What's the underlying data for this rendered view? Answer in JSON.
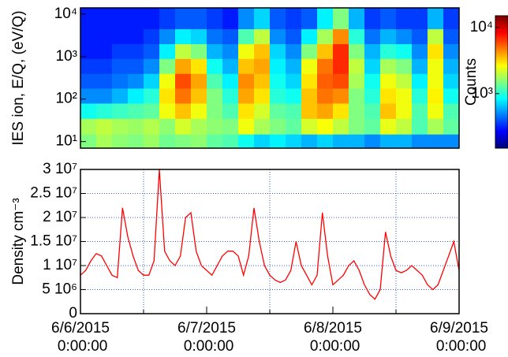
{
  "chart_data": [
    {
      "type": "heatmap",
      "y_label": "IES ion, E/Q, (eV/Q)",
      "colorbar_label": "Counts",
      "log_y": true,
      "xlim": [
        "6/6/2015 0:00:00",
        "6/9/2015 0:00:00"
      ],
      "ylim": [
        7,
        14000
      ],
      "yticks": [
        {
          "value": 10,
          "label": "10¹"
        },
        {
          "value": 100,
          "label": "10²"
        },
        {
          "value": 1000,
          "label": "10³"
        },
        {
          "value": 10000,
          "label": "10⁴"
        }
      ],
      "clim": [
        150,
        15000
      ],
      "cticks": [
        {
          "value": 1000,
          "label": "10³"
        },
        {
          "value": 10000,
          "label": "10⁴"
        }
      ],
      "colormap": "jet",
      "x_bins": [
        "6/6/2015 0:00:00",
        "6/6/2015 3:00:00",
        "6/6/2015 6:00:00",
        "6/6/2015 9:00:00",
        "6/6/2015 12:00:00",
        "6/6/2015 15:00:00",
        "6/6/2015 18:00:00",
        "6/6/2015 21:00:00",
        "6/7/2015 0:00:00",
        "6/7/2015 3:00:00",
        "6/7/2015 6:00:00",
        "6/7/2015 9:00:00",
        "6/7/2015 12:00:00",
        "6/7/2015 15:00:00",
        "6/7/2015 18:00:00",
        "6/7/2015 21:00:00",
        "6/8/2015 0:00:00",
        "6/8/2015 3:00:00",
        "6/8/2015 6:00:00",
        "6/8/2015 9:00:00",
        "6/8/2015 12:00:00",
        "6/8/2015 15:00:00",
        "6/8/2015 18:00:00",
        "6/8/2015 21:00:00",
        "6/9/2015 0:00:00"
      ],
      "y_bins": [
        7,
        15,
        35,
        80,
        180,
        400,
        900,
        2000,
        4500,
        14000
      ],
      "z": [
        [
          1500,
          1800,
          1600,
          1500,
          1700,
          1400,
          1500,
          1600,
          1300,
          1200,
          900,
          700,
          800,
          700,
          600,
          700,
          600,
          600,
          500,
          600,
          600,
          500,
          500,
          500
        ],
        [
          1800,
          2000,
          1800,
          1700,
          1900,
          1600,
          2200,
          1800,
          1600,
          1500,
          2500,
          1800,
          1500,
          1300,
          2200,
          2600,
          2000,
          1500,
          1300,
          2400,
          2000,
          1200,
          1800,
          1300
        ],
        [
          900,
          1000,
          1100,
          1200,
          1300,
          2500,
          3500,
          2500,
          1500,
          1200,
          3000,
          2200,
          1300,
          1200,
          3500,
          4000,
          3000,
          1500,
          1200,
          3500,
          2500,
          1200,
          2500,
          1200
        ],
        [
          500,
          500,
          600,
          800,
          1000,
          3000,
          5000,
          3500,
          1500,
          1000,
          4000,
          3000,
          1000,
          900,
          3500,
          5000,
          4500,
          1500,
          1000,
          3000,
          2500,
          1000,
          2800,
          900
        ],
        [
          400,
          400,
          450,
          500,
          700,
          2500,
          6000,
          4000,
          1200,
          800,
          4500,
          3500,
          900,
          700,
          3000,
          5500,
          6000,
          1800,
          900,
          2500,
          2000,
          800,
          2500,
          700
        ],
        [
          350,
          350,
          400,
          400,
          500,
          1500,
          4000,
          3000,
          900,
          600,
          3500,
          4000,
          800,
          600,
          2500,
          5000,
          7000,
          2000,
          700,
          1800,
          1500,
          600,
          2500,
          600
        ],
        [
          300,
          300,
          350,
          350,
          400,
          800,
          2000,
          1500,
          600,
          500,
          2500,
          3500,
          700,
          500,
          1500,
          3500,
          7000,
          1500,
          600,
          1000,
          900,
          500,
          3000,
          500
        ],
        [
          300,
          300,
          300,
          300,
          350,
          500,
          800,
          700,
          450,
          400,
          1200,
          2000,
          500,
          400,
          800,
          1800,
          4500,
          1000,
          450,
          600,
          500,
          400,
          2000,
          400
        ],
        [
          300,
          300,
          300,
          300,
          300,
          350,
          400,
          400,
          350,
          300,
          500,
          700,
          400,
          350,
          400,
          800,
          1500,
          600,
          350,
          400,
          350,
          350,
          600,
          350
        ]
      ]
    },
    {
      "type": "line",
      "y_label": "Density cm⁻³",
      "color": "#ff0000",
      "grid": true,
      "xlim": [
        "6/6/2015 0:00:00",
        "6/9/2015 0:00:00"
      ],
      "xticks": [
        "6/6/2015 0:00:00",
        "6/7/2015 0:00:00",
        "6/8/2015 0:00:00",
        "6/9/2015 0:00:00"
      ],
      "xminor": [
        "6/6/2015 12:00:00",
        "6/7/2015 12:00:00",
        "6/8/2015 12:00:00"
      ],
      "ylim": [
        0,
        30000000
      ],
      "yticks": [
        0,
        {
          "value": 5000000,
          "label": "5 10⁶"
        },
        {
          "value": 10000000,
          "label": "1 10⁷"
        },
        {
          "value": 15000000,
          "label": "1.5 10⁷"
        },
        {
          "value": 20000000,
          "label": "2 10⁷"
        },
        {
          "value": 25000000,
          "label": "2.5 10⁷"
        },
        {
          "value": 30000000,
          "label": "3 10⁷"
        }
      ],
      "x": [
        "6/6/2015 0:00:00",
        "6/6/2015 1:00:00",
        "6/6/2015 2:00:00",
        "6/6/2015 3:00:00",
        "6/6/2015 4:00:00",
        "6/6/2015 5:00:00",
        "6/6/2015 6:00:00",
        "6/6/2015 7:00:00",
        "6/6/2015 8:00:00",
        "6/6/2015 9:00:00",
        "6/6/2015 10:00:00",
        "6/6/2015 11:00:00",
        "6/6/2015 12:00:00",
        "6/6/2015 13:00:00",
        "6/6/2015 14:00:00",
        "6/6/2015 15:00:00",
        "6/6/2015 16:00:00",
        "6/6/2015 17:00:00",
        "6/6/2015 18:00:00",
        "6/6/2015 19:00:00",
        "6/6/2015 20:00:00",
        "6/6/2015 21:00:00",
        "6/6/2015 22:00:00",
        "6/6/2015 23:00:00",
        "6/7/2015 0:00:00",
        "6/7/2015 1:00:00",
        "6/7/2015 2:00:00",
        "6/7/2015 3:00:00",
        "6/7/2015 4:00:00",
        "6/7/2015 5:00:00",
        "6/7/2015 6:00:00",
        "6/7/2015 7:00:00",
        "6/7/2015 8:00:00",
        "6/7/2015 9:00:00",
        "6/7/2015 10:00:00",
        "6/7/2015 11:00:00",
        "6/7/2015 12:00:00",
        "6/7/2015 13:00:00",
        "6/7/2015 14:00:00",
        "6/7/2015 15:00:00",
        "6/7/2015 16:00:00",
        "6/7/2015 17:00:00",
        "6/7/2015 18:00:00",
        "6/7/2015 19:00:00",
        "6/7/2015 20:00:00",
        "6/7/2015 21:00:00",
        "6/7/2015 22:00:00",
        "6/7/2015 23:00:00",
        "6/8/2015 0:00:00",
        "6/8/2015 1:00:00",
        "6/8/2015 2:00:00",
        "6/8/2015 3:00:00",
        "6/8/2015 4:00:00",
        "6/8/2015 5:00:00",
        "6/8/2015 6:00:00",
        "6/8/2015 7:00:00",
        "6/8/2015 8:00:00",
        "6/8/2015 9:00:00",
        "6/8/2015 10:00:00",
        "6/8/2015 11:00:00",
        "6/8/2015 12:00:00",
        "6/8/2015 13:00:00",
        "6/8/2015 14:00:00",
        "6/8/2015 15:00:00",
        "6/8/2015 16:00:00",
        "6/8/2015 17:00:00",
        "6/8/2015 18:00:00",
        "6/8/2015 19:00:00",
        "6/8/2015 20:00:00",
        "6/8/2015 21:00:00",
        "6/8/2015 22:00:00",
        "6/8/2015 23:00:00",
        "6/9/2015 0:00:00"
      ],
      "values": [
        8000000,
        9000000,
        11000000,
        12500000,
        12000000,
        10000000,
        8000000,
        7500000,
        22000000,
        16000000,
        12000000,
        9000000,
        8000000,
        8000000,
        11000000,
        30000000,
        13000000,
        11000000,
        10000000,
        12000000,
        20000000,
        21000000,
        13000000,
        10000000,
        9000000,
        8000000,
        10000000,
        12000000,
        13000000,
        13000000,
        12000000,
        8000000,
        12000000,
        22000000,
        15000000,
        10000000,
        8000000,
        7000000,
        6500000,
        7000000,
        9000000,
        15000000,
        10000000,
        8000000,
        6000000,
        8000000,
        21000000,
        12000000,
        6000000,
        7000000,
        8000000,
        10000000,
        11000000,
        9000000,
        6000000,
        4000000,
        3000000,
        5000000,
        17000000,
        12000000,
        9000000,
        8500000,
        9000000,
        10000000,
        9000000,
        8000000,
        6000000,
        5000000,
        6000000,
        9000000,
        12000000,
        15000000,
        9000000
      ]
    }
  ]
}
